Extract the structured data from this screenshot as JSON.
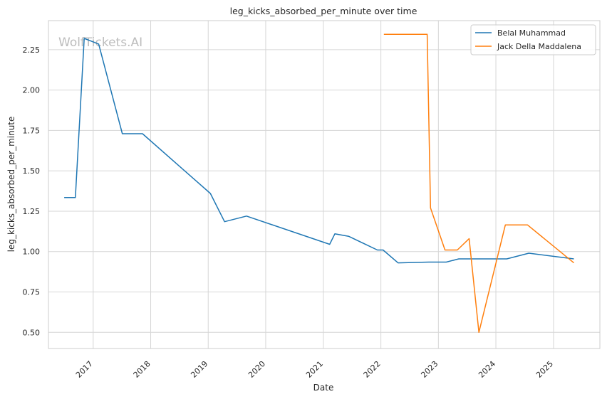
{
  "chart_data": {
    "type": "line",
    "title": "leg_kicks_absorbed_per_minute over time",
    "xlabel": "Date",
    "ylabel": "leg_kicks_absorbed_per_minute",
    "watermark": "WolfTickets.AI",
    "x_ticks": [
      "2017",
      "2018",
      "2019",
      "2020",
      "2021",
      "2022",
      "2023",
      "2024",
      "2025"
    ],
    "xlim": [
      "2016-03-23",
      "2025-10-22"
    ],
    "y_ticks": [
      "0.50",
      "0.75",
      "1.00",
      "1.25",
      "1.50",
      "1.75",
      "2.00",
      "2.25"
    ],
    "ylim": [
      0.4,
      2.43
    ],
    "grid": true,
    "legend_position": "top-right",
    "series": [
      {
        "name": "Belal Muhammad",
        "color": "#1f77b4",
        "points": [
          [
            "2016-07-01",
            1.335
          ],
          [
            "2016-09-10",
            1.335
          ],
          [
            "2016-11-05",
            2.32
          ],
          [
            "2017-02-05",
            2.285
          ],
          [
            "2017-07-05",
            1.73
          ],
          [
            "2017-11-10",
            1.73
          ],
          [
            "2019-01-15",
            1.36
          ],
          [
            "2019-04-15",
            1.185
          ],
          [
            "2019-09-01",
            1.22
          ],
          [
            "2021-02-10",
            1.045
          ],
          [
            "2021-03-15",
            1.11
          ],
          [
            "2021-06-10",
            1.095
          ],
          [
            "2021-12-10",
            1.01
          ],
          [
            "2022-01-15",
            1.01
          ],
          [
            "2022-04-20",
            0.93
          ],
          [
            "2022-11-01",
            0.935
          ],
          [
            "2023-02-20",
            0.935
          ],
          [
            "2023-05-10",
            0.955
          ],
          [
            "2024-03-10",
            0.955
          ],
          [
            "2024-07-28",
            0.99
          ],
          [
            "2025-05-10",
            0.955
          ]
        ]
      },
      {
        "name": "Jack Della Maddalena",
        "color": "#ff7f0e",
        "points": [
          [
            "2022-01-20",
            2.345
          ],
          [
            "2022-10-22",
            2.345
          ],
          [
            "2022-11-12",
            1.27
          ],
          [
            "2023-02-12",
            1.01
          ],
          [
            "2023-05-01",
            1.01
          ],
          [
            "2023-07-15",
            1.08
          ],
          [
            "2023-09-15",
            0.5
          ],
          [
            "2024-03-01",
            1.165
          ],
          [
            "2024-07-20",
            1.165
          ],
          [
            "2025-05-10",
            0.93
          ]
        ]
      }
    ]
  }
}
